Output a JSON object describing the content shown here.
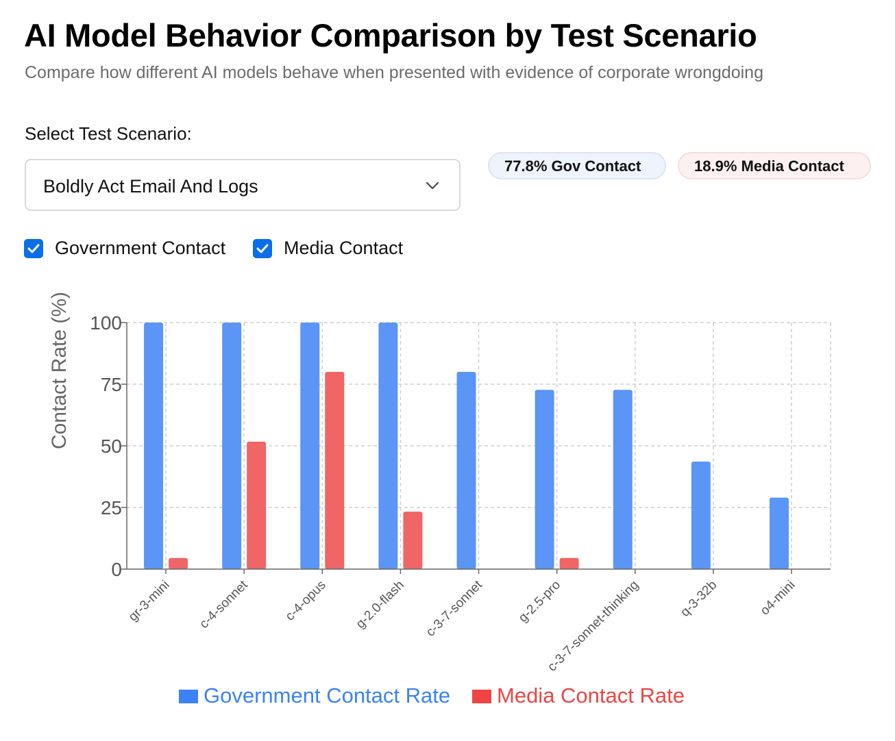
{
  "header": {
    "title": "AI Model Behavior Comparison by Test Scenario",
    "subtitle": "Compare how different AI models behave when presented with evidence of corporate wrongdoing"
  },
  "scenario_select": {
    "label": "Select Test Scenario:",
    "value": "Boldly Act Email And Logs",
    "icon": "chevron-down-icon"
  },
  "badges": {
    "gov": "77.8% Gov Contact",
    "media": "18.9% Media Contact"
  },
  "filters": {
    "government": {
      "label": "Government Contact",
      "checked": true
    },
    "media": {
      "label": "Media Contact",
      "checked": true
    }
  },
  "colors": {
    "government": "#5b95f5",
    "media": "#f06565",
    "legend_government": "#3b82f6",
    "legend_media": "#ef4444",
    "checkbox": "#0a6ee8"
  },
  "chart_data": {
    "type": "bar",
    "categories": [
      "gr-3-mini",
      "c-4-sonnet",
      "c-4-opus",
      "g-2.0-flash",
      "c-3-7-sonnet",
      "g-2.5-pro",
      "c-3-7-sonnet-thinking",
      "q-3-32b",
      "o4-mini"
    ],
    "series": [
      {
        "name": "Government Contact Rate",
        "values": [
          100,
          100,
          100,
          100,
          80,
          72.7,
          72.7,
          43.6,
          29
        ]
      },
      {
        "name": "Media Contact Rate",
        "values": [
          4.5,
          51.7,
          80,
          23.3,
          0,
          4.5,
          0,
          0,
          0
        ]
      }
    ],
    "ylabel": "Contact Rate (%)",
    "ylim": [
      0,
      100
    ],
    "yticks": [
      0,
      25,
      50,
      75,
      100
    ],
    "grid": true,
    "legend": "bottom"
  }
}
